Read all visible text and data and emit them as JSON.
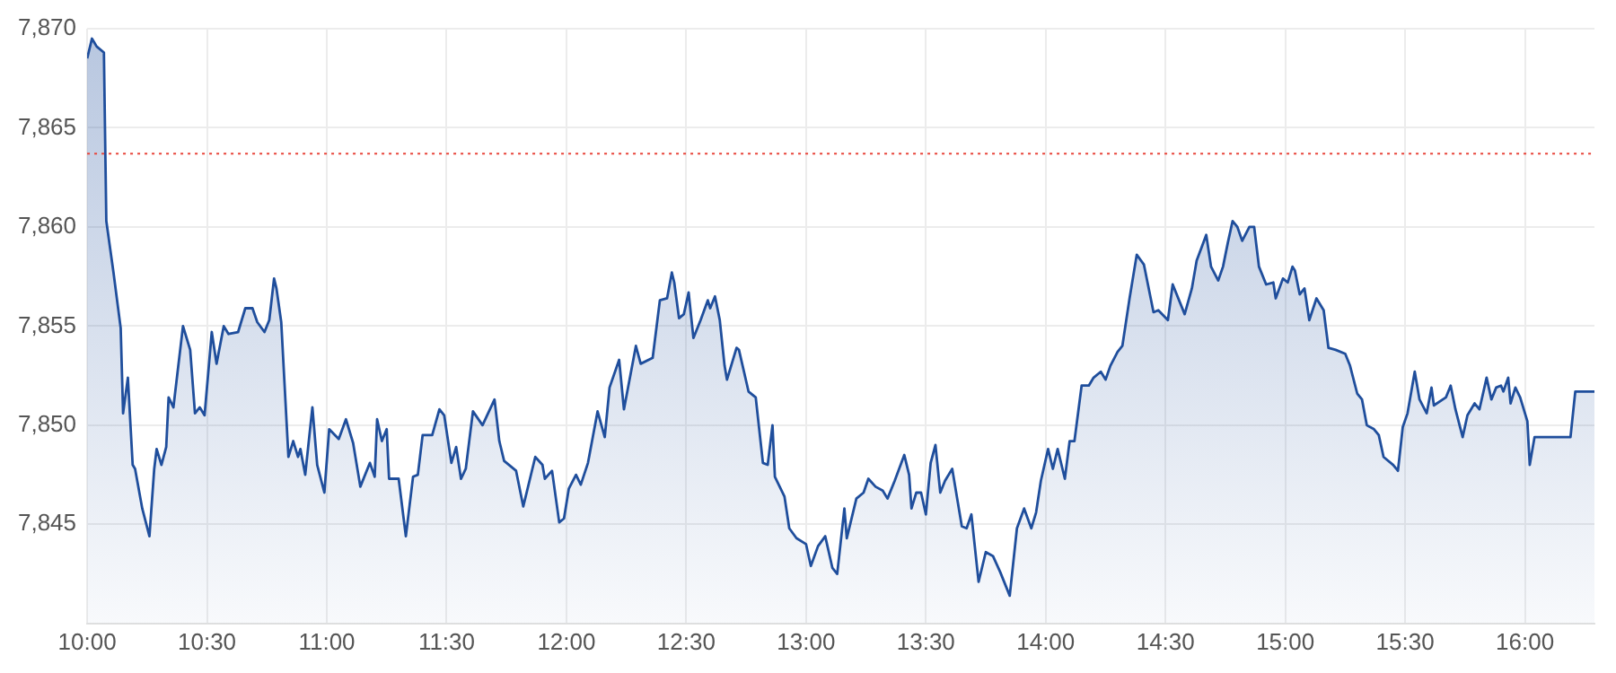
{
  "chart_data": {
    "type": "area",
    "xlim": [
      10,
      16.29
    ],
    "xticks": [
      {
        "value": 10,
        "label": "10:00"
      },
      {
        "value": 10.5,
        "label": "10:30"
      },
      {
        "value": 11,
        "label": "11:00"
      },
      {
        "value": 11.5,
        "label": "11:30"
      },
      {
        "value": 12,
        "label": "12:00"
      },
      {
        "value": 12.5,
        "label": "12:30"
      },
      {
        "value": 13,
        "label": "13:00"
      },
      {
        "value": 13.5,
        "label": "13:30"
      },
      {
        "value": 14,
        "label": "14:00"
      },
      {
        "value": 14.5,
        "label": "14:30"
      },
      {
        "value": 15,
        "label": "15:00"
      },
      {
        "value": 15.5,
        "label": "15:30"
      },
      {
        "value": 16,
        "label": "16:00"
      }
    ],
    "ylim": [
      7840,
      7870
    ],
    "yticks": [
      {
        "value": 7845,
        "label": "7,845"
      },
      {
        "value": 7850,
        "label": "7,850"
      },
      {
        "value": 7855,
        "label": "7,855"
      },
      {
        "value": 7860,
        "label": "7,860"
      },
      {
        "value": 7865,
        "label": "7,865"
      },
      {
        "value": 7870,
        "label": "7,870"
      }
    ],
    "grid": true,
    "marker": "none",
    "line_style": "solid",
    "ref_lines": [
      {
        "axis": "y",
        "value": 7863.7,
        "color": "#e8443a",
        "line_style": "dotted"
      }
    ],
    "series": [
      {
        "color": "#1f4e9c",
        "x": [
          10.0,
          10.02,
          10.04,
          10.07,
          10.08,
          10.11,
          10.14,
          10.15,
          10.17,
          10.19,
          10.2,
          10.23,
          10.26,
          10.28,
          10.29,
          10.31,
          10.33,
          10.34,
          10.36,
          10.4,
          10.43,
          10.45,
          10.47,
          10.49,
          10.52,
          10.54,
          10.57,
          10.59,
          10.63,
          10.66,
          10.69,
          10.71,
          10.74,
          10.76,
          10.78,
          10.79,
          10.81,
          10.84,
          10.86,
          10.88,
          10.89,
          10.91,
          10.94,
          10.96,
          10.99,
          11.01,
          11.05,
          11.08,
          11.11,
          11.14,
          11.18,
          11.2,
          11.21,
          11.23,
          11.25,
          11.26,
          11.3,
          11.33,
          11.36,
          11.38,
          11.4,
          11.44,
          11.47,
          11.49,
          11.52,
          11.54,
          11.56,
          11.58,
          11.61,
          11.65,
          11.7,
          11.72,
          11.74,
          11.79,
          11.82,
          11.87,
          11.9,
          11.91,
          11.94,
          11.97,
          11.99,
          12.01,
          12.04,
          12.06,
          12.09,
          12.13,
          12.16,
          12.18,
          12.22,
          12.24,
          12.29,
          12.31,
          12.36,
          12.39,
          12.42,
          12.44,
          12.45,
          12.47,
          12.49,
          12.51,
          12.53,
          12.56,
          12.59,
          12.6,
          12.62,
          12.64,
          12.66,
          12.67,
          12.71,
          12.72,
          12.76,
          12.79,
          12.82,
          12.84,
          12.86,
          12.87,
          12.91,
          12.93,
          12.96,
          13.0,
          13.02,
          13.05,
          13.08,
          13.11,
          13.13,
          13.16,
          13.17,
          13.21,
          13.24,
          13.26,
          13.29,
          13.32,
          13.34,
          13.37,
          13.41,
          13.43,
          13.44,
          13.46,
          13.48,
          13.5,
          13.52,
          13.54,
          13.56,
          13.58,
          13.61,
          13.65,
          13.67,
          13.69,
          13.72,
          13.75,
          13.78,
          13.81,
          13.85,
          13.88,
          13.91,
          13.94,
          13.96,
          13.98,
          14.01,
          14.03,
          14.05,
          14.08,
          14.1,
          14.12,
          14.15,
          14.18,
          14.2,
          14.23,
          14.25,
          14.27,
          14.3,
          14.32,
          14.35,
          14.38,
          14.41,
          14.45,
          14.47,
          14.51,
          14.53,
          14.58,
          14.61,
          14.63,
          14.67,
          14.69,
          14.72,
          14.74,
          14.76,
          14.78,
          14.8,
          14.82,
          14.85,
          14.87,
          14.89,
          14.92,
          14.95,
          14.96,
          14.99,
          15.01,
          15.03,
          15.04,
          15.06,
          15.08,
          15.1,
          15.13,
          15.16,
          15.18,
          15.21,
          15.25,
          15.27,
          15.3,
          15.32,
          15.34,
          15.37,
          15.39,
          15.41,
          15.45,
          15.47,
          15.49,
          15.51,
          15.54,
          15.56,
          15.59,
          15.61,
          15.62,
          15.67,
          15.69,
          15.71,
          15.74,
          15.76,
          15.79,
          15.81,
          15.84,
          15.86,
          15.88,
          15.9,
          15.91,
          15.93,
          15.94,
          15.96,
          15.98,
          16.01,
          16.02,
          16.04,
          16.19,
          16.21,
          16.29
        ],
        "values": [
          7868.5,
          7869.5,
          7869.1,
          7868.8,
          7860.3,
          7857.7,
          7854.9,
          7850.6,
          7852.4,
          7848.0,
          7847.8,
          7845.8,
          7844.4,
          7847.8,
          7848.8,
          7848.0,
          7848.9,
          7851.4,
          7850.9,
          7855.0,
          7853.8,
          7850.6,
          7850.9,
          7850.5,
          7854.7,
          7853.1,
          7855.0,
          7854.6,
          7854.7,
          7855.9,
          7855.9,
          7855.2,
          7854.7,
          7855.3,
          7857.4,
          7856.9,
          7855.2,
          7848.4,
          7849.2,
          7848.4,
          7848.8,
          7847.5,
          7850.9,
          7848.0,
          7846.6,
          7849.8,
          7849.3,
          7850.3,
          7849.1,
          7846.9,
          7848.1,
          7847.4,
          7850.3,
          7849.2,
          7849.8,
          7847.3,
          7847.3,
          7844.4,
          7847.4,
          7847.5,
          7849.5,
          7849.5,
          7850.8,
          7850.5,
          7848.1,
          7848.9,
          7847.3,
          7847.8,
          7850.7,
          7850.0,
          7851.3,
          7849.2,
          7848.2,
          7847.7,
          7845.9,
          7848.4,
          7848.0,
          7847.3,
          7847.7,
          7845.1,
          7845.3,
          7846.8,
          7847.5,
          7847.0,
          7848.1,
          7850.7,
          7849.4,
          7851.9,
          7853.3,
          7850.8,
          7854.0,
          7853.1,
          7853.4,
          7856.3,
          7856.4,
          7857.7,
          7857.2,
          7855.4,
          7855.6,
          7856.7,
          7854.4,
          7855.3,
          7856.3,
          7855.9,
          7856.5,
          7855.3,
          7853.0,
          7852.3,
          7853.9,
          7853.8,
          7851.7,
          7851.4,
          7848.1,
          7848.0,
          7850.0,
          7847.4,
          7846.4,
          7844.8,
          7844.3,
          7844.0,
          7842.9,
          7843.9,
          7844.4,
          7842.8,
          7842.5,
          7845.8,
          7844.3,
          7846.3,
          7846.6,
          7847.3,
          7846.9,
          7846.7,
          7846.3,
          7847.2,
          7848.5,
          7847.5,
          7845.8,
          7846.6,
          7846.6,
          7845.5,
          7848.1,
          7849.0,
          7846.6,
          7847.2,
          7847.8,
          7844.9,
          7844.8,
          7845.5,
          7842.1,
          7843.6,
          7843.4,
          7842.6,
          7841.4,
          7844.8,
          7845.8,
          7844.8,
          7845.6,
          7847.2,
          7848.8,
          7847.8,
          7848.8,
          7847.3,
          7849.2,
          7849.2,
          7852.0,
          7852.0,
          7852.4,
          7852.7,
          7852.3,
          7853.0,
          7853.7,
          7854.0,
          7856.4,
          7858.6,
          7858.1,
          7855.7,
          7855.8,
          7855.3,
          7857.1,
          7855.6,
          7856.9,
          7858.3,
          7859.6,
          7858.0,
          7857.3,
          7858.0,
          7859.2,
          7860.3,
          7860.0,
          7859.3,
          7860.0,
          7860.0,
          7858.0,
          7857.1,
          7857.2,
          7856.4,
          7857.4,
          7857.2,
          7858.0,
          7857.8,
          7856.6,
          7856.9,
          7855.3,
          7856.4,
          7855.8,
          7853.9,
          7853.8,
          7853.6,
          7853.0,
          7851.6,
          7851.3,
          7850.0,
          7849.8,
          7849.5,
          7848.4,
          7848.0,
          7847.7,
          7849.9,
          7850.6,
          7852.7,
          7851.3,
          7850.6,
          7851.9,
          7851.0,
          7851.4,
          7852.0,
          7850.8,
          7849.4,
          7850.5,
          7851.1,
          7850.8,
          7852.4,
          7851.3,
          7851.9,
          7852.0,
          7851.7,
          7852.4,
          7851.1,
          7851.9,
          7851.4,
          7850.2,
          7848.0,
          7849.4,
          7849.4,
          7851.7,
          7851.7
        ]
      }
    ]
  }
}
